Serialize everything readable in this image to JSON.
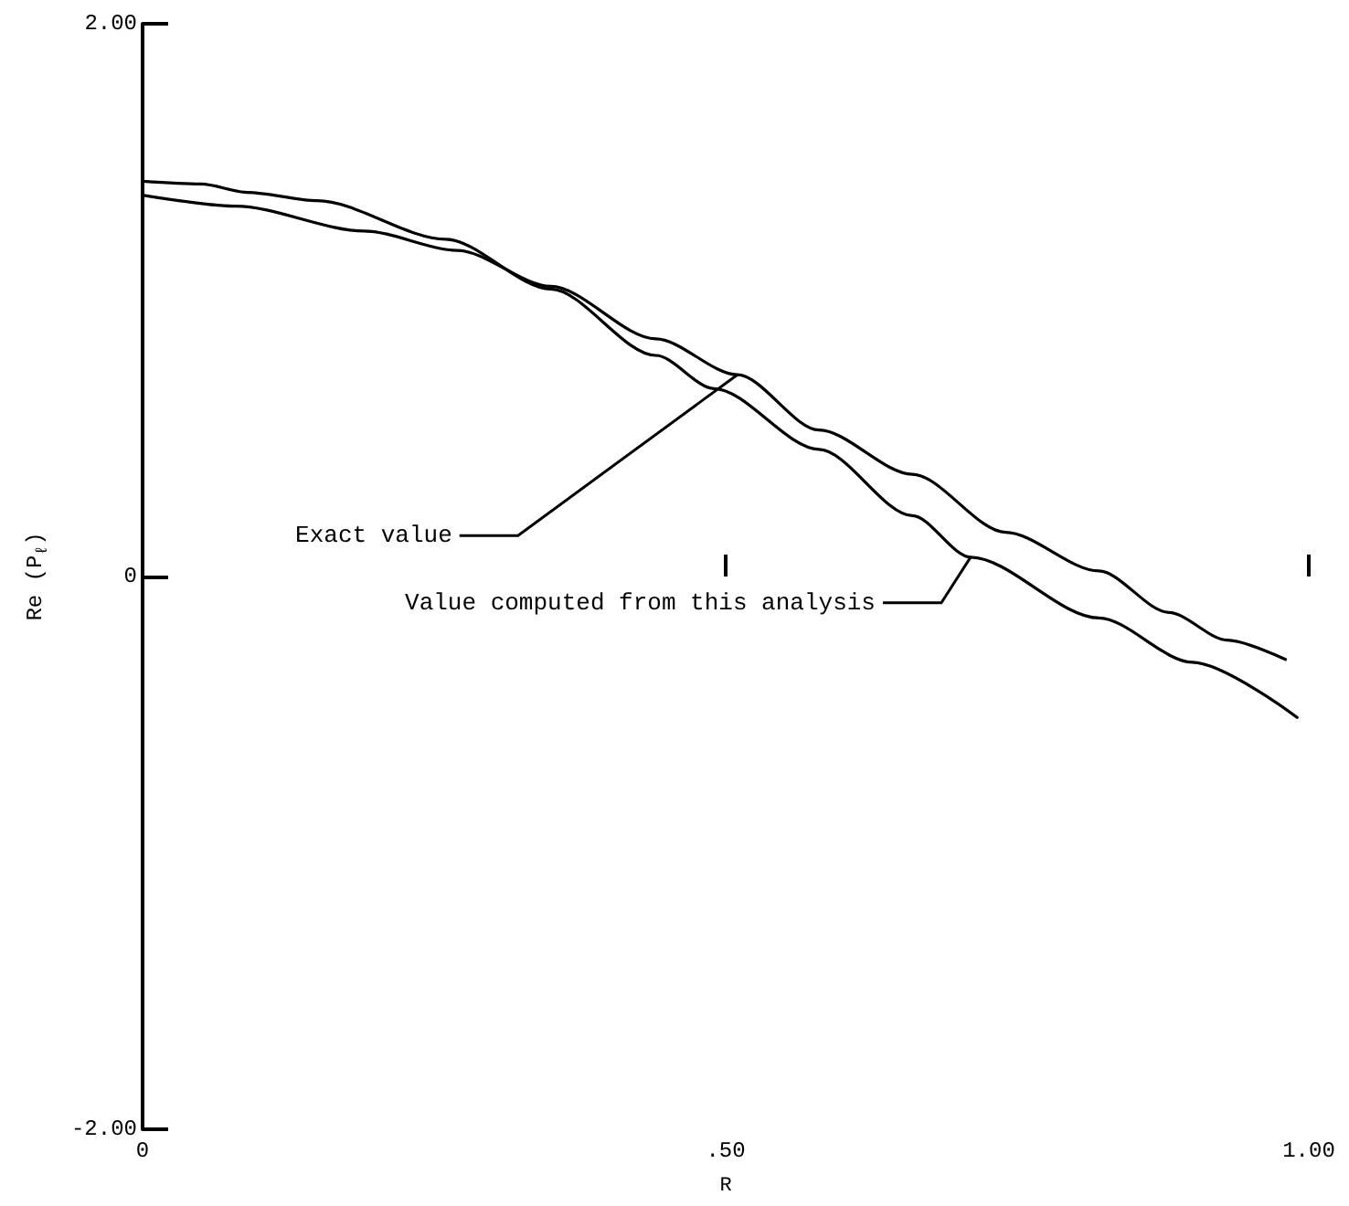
{
  "chart_data": {
    "type": "line",
    "xlabel": "R",
    "ylabel": "Re (P$_{ℓ}$)",
    "xlim": [
      0,
      1
    ],
    "xticks": [
      0,
      {
        "value": 0.5,
        "label": ".50"
      },
      {
        "value": 1,
        "label": "1.00"
      }
    ],
    "ylim": [
      -2,
      2
    ],
    "yticks": [
      {
        "value": -2,
        "label": "-2.00"
      },
      0,
      {
        "value": 2,
        "label": "2.00"
      }
    ],
    "grid": false,
    "marker": "none",
    "line_style": "solid",
    "series": [
      {
        "color": "#000000",
        "x": [
          0,
          0.08,
          0.19,
          0.27,
          0.35,
          0.44,
          0.51,
          0.58,
          0.66,
          0.74,
          0.82,
          0.88,
          0.93,
          0.98
        ],
        "values": [
          1.38,
          1.34,
          1.25,
          1.18,
          1.05,
          0.86,
          0.73,
          0.53,
          0.37,
          0.16,
          0.02,
          -0.13,
          -0.23,
          -0.3
        ]
      },
      {
        "color": "#000000",
        "x": [
          0,
          0.05,
          0.09,
          0.15,
          0.26,
          0.35,
          0.44,
          0.49,
          0.58,
          0.66,
          0.71,
          0.82,
          0.9,
          0.99
        ],
        "values": [
          1.43,
          1.42,
          1.39,
          1.36,
          1.22,
          1.04,
          0.8,
          0.68,
          0.46,
          0.22,
          0.07,
          -0.15,
          -0.31,
          -0.51
        ]
      }
    ],
    "annotations": [
      {
        "text": "Exact value",
        "x": 0.51,
        "y": 0.73
      },
      {
        "text": "Value computed from this analysis",
        "x": 0.71,
        "y": 0.07
      }
    ]
  }
}
